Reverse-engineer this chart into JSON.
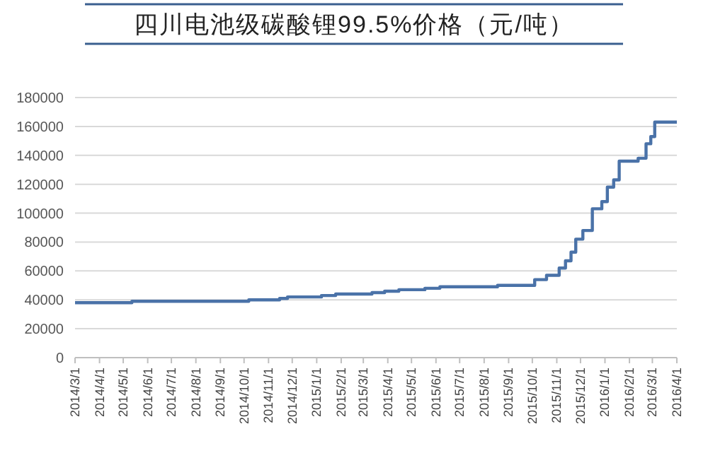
{
  "chart_data": {
    "type": "step",
    "title": "四川电池级碳酸锂99.5%价格（元/吨）",
    "x": [
      "2014-03-01",
      "2014-05-12",
      "2014-10-07",
      "2014-11-15",
      "2014-11-25",
      "2015-01-07",
      "2015-01-25",
      "2015-03-12",
      "2015-03-28",
      "2015-04-15",
      "2015-05-18",
      "2015-06-06",
      "2015-08-18",
      "2015-10-04",
      "2015-10-19",
      "2015-11-04",
      "2015-11-12",
      "2015-11-19",
      "2015-11-25",
      "2015-12-04",
      "2015-12-16",
      "2015-12-28",
      "2016-01-04",
      "2016-01-12",
      "2016-01-19",
      "2016-02-12",
      "2016-02-22",
      "2016-02-28",
      "2016-03-04",
      "2016-04-01"
    ],
    "series": [
      {
        "color": "#4a72a8",
        "values": [
          38000,
          39000,
          40000,
          41000,
          42000,
          43000,
          44000,
          45000,
          46000,
          47000,
          48000,
          49000,
          50000,
          54000,
          57000,
          62000,
          67000,
          73000,
          82000,
          88000,
          103000,
          108000,
          118000,
          123000,
          136000,
          138000,
          148000,
          153000,
          163000,
          163000
        ]
      }
    ],
    "xlim": [
      "2014-03-01",
      "2016-04-01"
    ],
    "xticks": [
      {
        "value": "2014-03-01",
        "label": "2014/3/1"
      },
      {
        "value": "2014-04-01",
        "label": "2014/4/1"
      },
      {
        "value": "2014-05-01",
        "label": "2014/5/1"
      },
      {
        "value": "2014-06-01",
        "label": "2014/6/1"
      },
      {
        "value": "2014-07-01",
        "label": "2014/7/1"
      },
      {
        "value": "2014-08-01",
        "label": "2014/8/1"
      },
      {
        "value": "2014-09-01",
        "label": "2014/9/1"
      },
      {
        "value": "2014-10-01",
        "label": "2014/10/1"
      },
      {
        "value": "2014-11-01",
        "label": "2014/11/1"
      },
      {
        "value": "2014-12-01",
        "label": "2014/12/1"
      },
      {
        "value": "2015-01-01",
        "label": "2015/1/1"
      },
      {
        "value": "2015-02-01",
        "label": "2015/2/1"
      },
      {
        "value": "2015-03-01",
        "label": "2015/3/1"
      },
      {
        "value": "2015-04-01",
        "label": "2015/4/1"
      },
      {
        "value": "2015-05-01",
        "label": "2015/5/1"
      },
      {
        "value": "2015-06-01",
        "label": "2015/6/1"
      },
      {
        "value": "2015-07-01",
        "label": "2015/7/1"
      },
      {
        "value": "2015-08-01",
        "label": "2015/8/1"
      },
      {
        "value": "2015-09-01",
        "label": "2015/9/1"
      },
      {
        "value": "2015-10-01",
        "label": "2015/10/1"
      },
      {
        "value": "2015-11-01",
        "label": "2015/11/1"
      },
      {
        "value": "2015-12-01",
        "label": "2015/12/1"
      },
      {
        "value": "2016-01-01",
        "label": "2016/1/1"
      },
      {
        "value": "2016-02-01",
        "label": "2016/2/1"
      },
      {
        "value": "2016-03-01",
        "label": "2016/3/1"
      },
      {
        "value": "2016-04-01",
        "label": "2016/4/1"
      }
    ],
    "ylim": [
      0,
      180000
    ],
    "yticks": [
      0,
      20000,
      40000,
      60000,
      80000,
      100000,
      120000,
      140000,
      160000,
      180000
    ],
    "grid": "y",
    "marker": "none",
    "line_style": "solid"
  }
}
